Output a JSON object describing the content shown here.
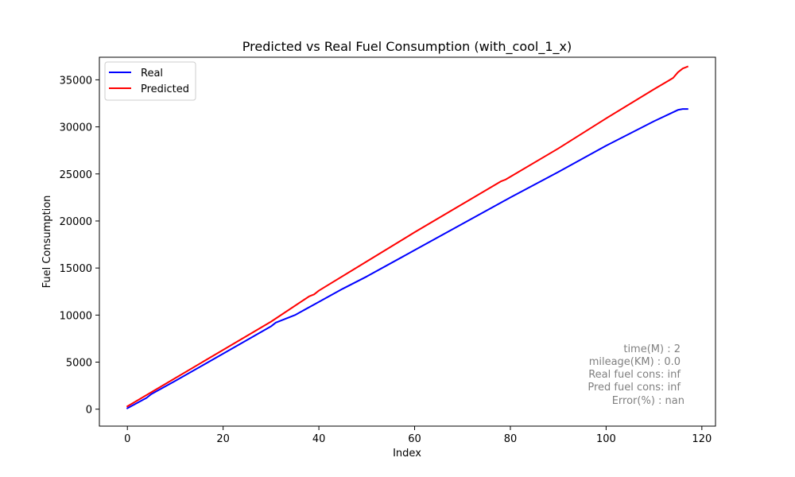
{
  "chart_data": {
    "type": "line",
    "title": "Predicted vs Real Fuel Consumption (with_cool_1_x)",
    "xlabel": "Index",
    "ylabel": "Fuel Consumption",
    "xlim": [
      -5.85,
      122.85
    ],
    "ylim": [
      -1800,
      37400
    ],
    "xticks": [
      0,
      20,
      40,
      60,
      80,
      100,
      120
    ],
    "yticks": [
      0,
      5000,
      10000,
      15000,
      20000,
      25000,
      30000,
      35000
    ],
    "grid": false,
    "legend_position": "upper-left",
    "series": [
      {
        "name": "Real",
        "color": "#0000ff",
        "points": [
          [
            0,
            100
          ],
          [
            4,
            1200
          ],
          [
            5,
            1600
          ],
          [
            10,
            3000
          ],
          [
            20,
            5900
          ],
          [
            30,
            8800
          ],
          [
            31,
            9200
          ],
          [
            35,
            10000
          ],
          [
            40,
            11400
          ],
          [
            45,
            12800
          ],
          [
            50,
            14100
          ],
          [
            60,
            16900
          ],
          [
            70,
            19700
          ],
          [
            80,
            22500
          ],
          [
            90,
            25200
          ],
          [
            100,
            28000
          ],
          [
            110,
            30600
          ],
          [
            115,
            31800
          ],
          [
            116,
            31900
          ],
          [
            117,
            31900
          ]
        ]
      },
      {
        "name": "Predicted",
        "color": "#ff0000",
        "points": [
          [
            0,
            300
          ],
          [
            5,
            1800
          ],
          [
            10,
            3300
          ],
          [
            20,
            6300
          ],
          [
            30,
            9300
          ],
          [
            38,
            12000
          ],
          [
            39,
            12200
          ],
          [
            40,
            12600
          ],
          [
            50,
            15700
          ],
          [
            60,
            18800
          ],
          [
            70,
            21800
          ],
          [
            78,
            24200
          ],
          [
            79,
            24400
          ],
          [
            90,
            27700
          ],
          [
            100,
            30900
          ],
          [
            110,
            34000
          ],
          [
            113,
            34900
          ],
          [
            114,
            35200
          ],
          [
            115,
            35800
          ],
          [
            116,
            36200
          ],
          [
            117,
            36400
          ]
        ]
      }
    ],
    "annotations": [
      "time(M) : 2",
      "mileage(KM) : 0.0",
      "Real fuel cons: inf",
      "Pred fuel cons: inf",
      "Error(%) : nan"
    ]
  }
}
